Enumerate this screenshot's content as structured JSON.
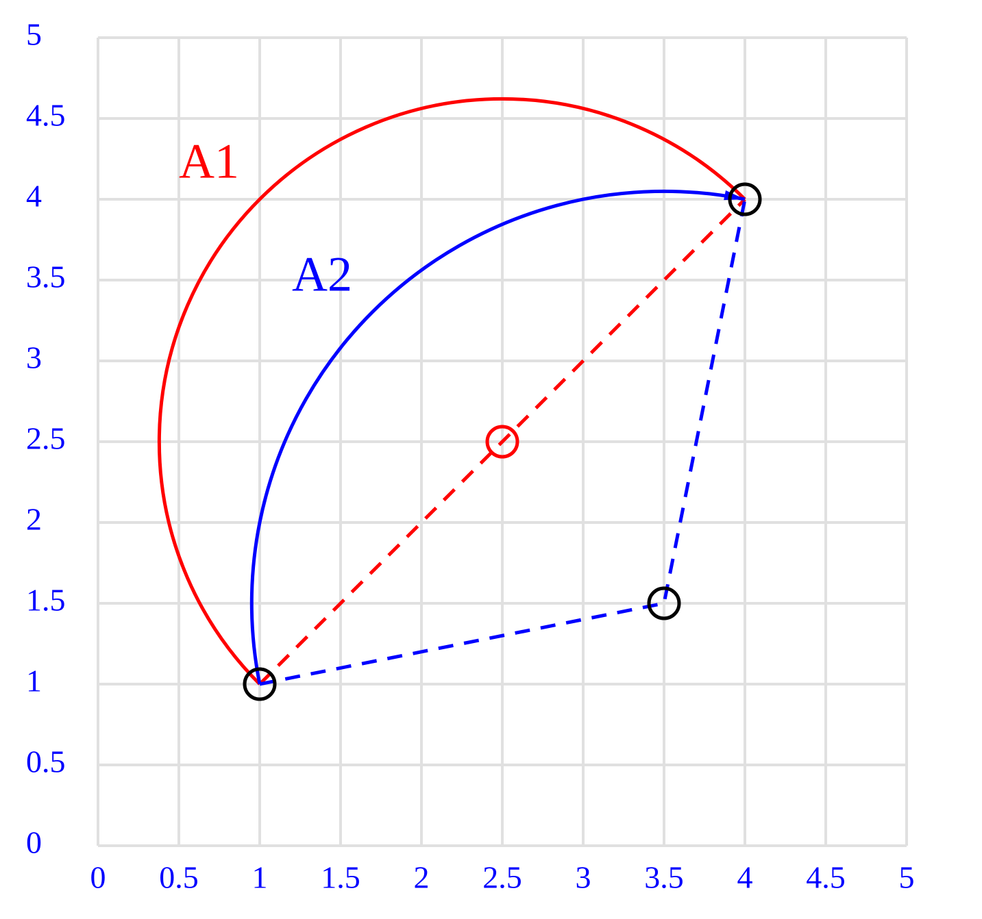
{
  "xlim": [
    0,
    5
  ],
  "ylim": [
    0,
    5
  ],
  "xticks": [
    0,
    0.5,
    1,
    1.5,
    2,
    2.5,
    3,
    3.5,
    4,
    4.5,
    5
  ],
  "yticks": [
    0,
    0.5,
    1,
    1.5,
    2,
    2.5,
    3,
    3.5,
    4,
    4.5,
    5
  ],
  "arcs": [
    {
      "label": "A1",
      "color": "#ff0000",
      "center": [
        2.5,
        2.5
      ],
      "start": [
        1,
        1
      ],
      "end": [
        4,
        4
      ]
    },
    {
      "label": "A2",
      "color": "#0000ff",
      "center": [
        3.5,
        1.5
      ],
      "start": [
        1,
        1
      ],
      "end": [
        4,
        4
      ]
    }
  ],
  "dashed_paths": [
    {
      "color": "#ff0000",
      "x": [
        1,
        4
      ],
      "y": [
        1,
        4
      ]
    },
    {
      "color": "#0000ff",
      "x": [
        1,
        3.5,
        4
      ],
      "y": [
        1,
        1.5,
        4
      ]
    }
  ],
  "points": [
    {
      "x": 1,
      "y": 1,
      "color": "#000000"
    },
    {
      "x": 4,
      "y": 4,
      "color": "#000000"
    },
    {
      "x": 3.5,
      "y": 1.5,
      "color": "#000000"
    },
    {
      "x": 2.5,
      "y": 2.5,
      "color": "#ff0000"
    }
  ]
}
